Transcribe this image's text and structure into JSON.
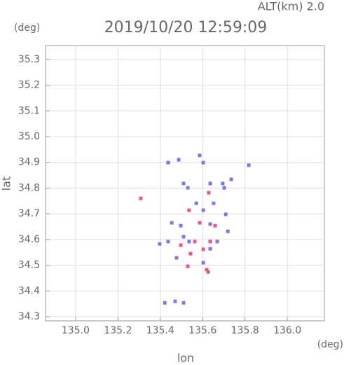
{
  "chart_data": {
    "type": "scatter",
    "title": "2019/10/20 12:59:09",
    "altitude_label": "ALT(km) 2.0",
    "y_unit": "(deg)",
    "x_unit": "(deg)",
    "x_label": "lon",
    "y_label": "lat",
    "xlim": [
      134.858,
      136.175
    ],
    "ylim": [
      34.284,
      35.354
    ],
    "xticks": [
      {
        "value": 135,
        "label": "135.0"
      },
      135.2,
      135.4,
      135.6,
      135.8,
      {
        "value": 136,
        "label": "136.0"
      }
    ],
    "yticks": [
      34.3,
      34.4,
      34.5,
      34.6,
      34.7,
      34.8,
      34.9,
      {
        "value": 35,
        "label": "35.0"
      },
      35.1,
      35.2,
      35.3
    ],
    "grid": true,
    "series": [
      {
        "color": "#7777ee",
        "x": [
          135.437,
          135.487,
          135.586,
          135.603,
          135.51,
          135.53,
          135.636,
          135.695,
          135.702,
          135.735,
          135.818,
          135.454,
          135.497,
          135.51,
          135.536,
          135.603,
          135.636,
          135.669,
          135.719,
          135.437,
          135.477,
          135.603,
          135.636,
          135.421,
          135.47,
          135.51,
          135.397,
          135.57,
          135.652,
          135.709
        ],
        "y": [
          34.899,
          34.91,
          34.927,
          34.899,
          34.818,
          34.801,
          34.818,
          34.818,
          34.801,
          34.834,
          34.889,
          34.665,
          34.654,
          34.611,
          34.592,
          34.714,
          34.66,
          34.592,
          34.632,
          34.592,
          34.529,
          34.51,
          34.564,
          34.354,
          34.36,
          34.354,
          34.583,
          34.741,
          34.741,
          34.698
        ]
      },
      {
        "color": "#ee5577",
        "x": [
          135.308,
          135.536,
          135.629,
          135.586,
          135.659,
          135.497,
          135.543,
          135.619,
          135.626,
          135.53,
          135.563,
          135.636,
          135.603
        ],
        "y": [
          34.76,
          34.714,
          34.782,
          34.665,
          34.654,
          34.578,
          34.545,
          34.483,
          34.474,
          34.496,
          34.592,
          34.592,
          34.562
        ]
      }
    ]
  }
}
